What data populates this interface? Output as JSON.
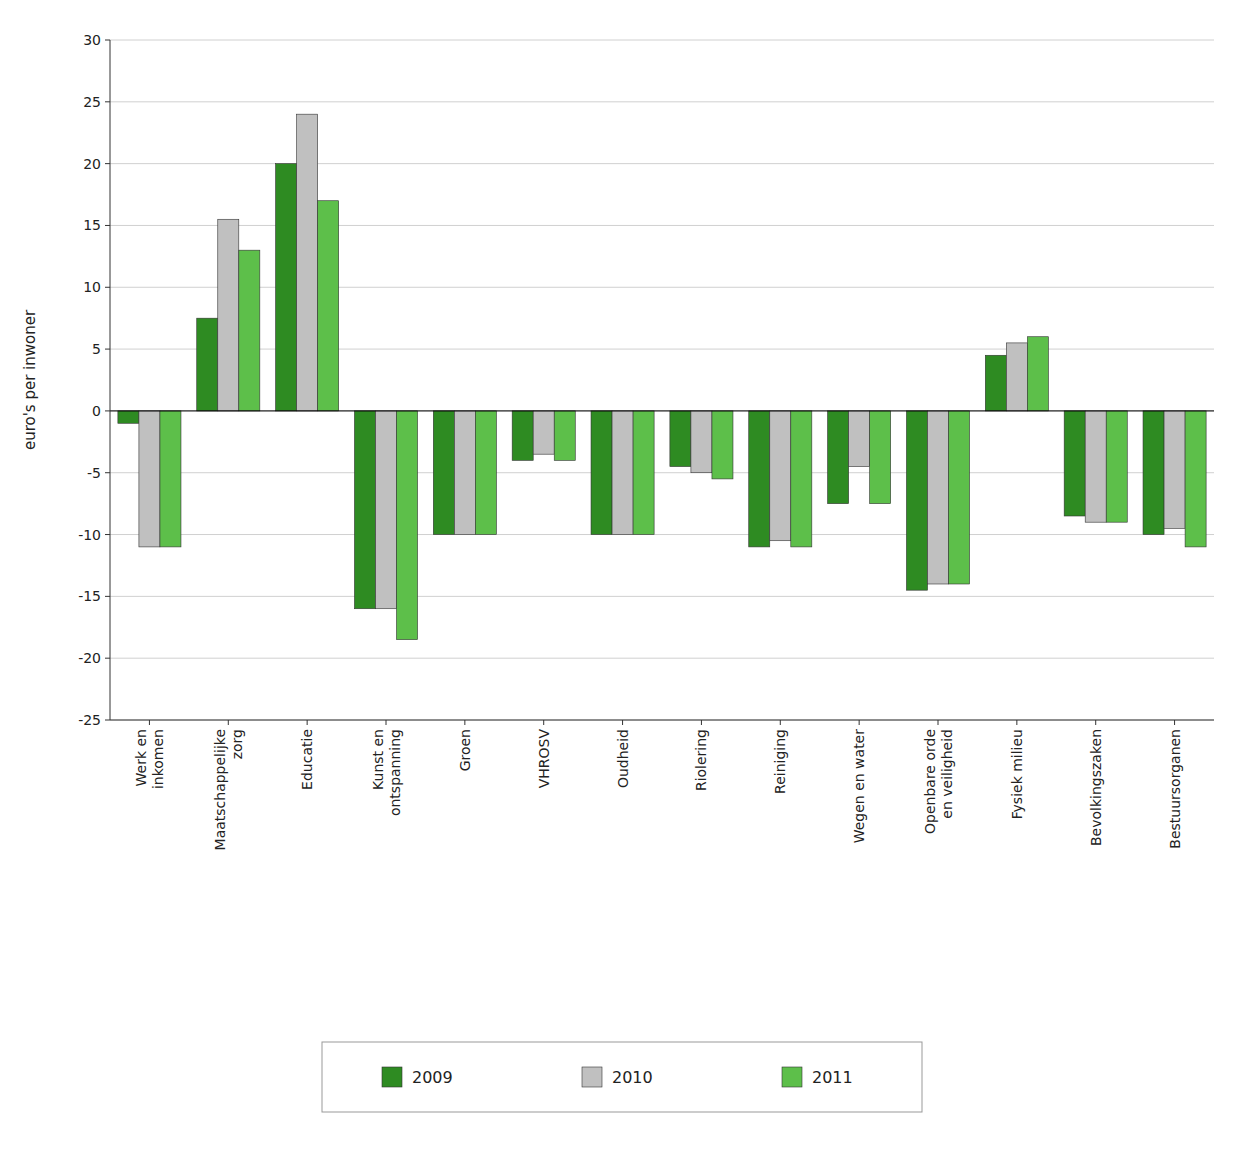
{
  "chart_data": {
    "type": "bar",
    "categories": [
      "Werk en\ninkomen",
      "Maatschappelijke\nzorg",
      "Educatie",
      "Kunst en\nontspanning",
      "Groen",
      "VHROSV",
      "Oudheid",
      "Riolering",
      "Reiniging",
      "Wegen en water",
      "Openbare orde\nen veiligheid",
      "Fysiek milieu",
      "Bevolkingszaken",
      "Bestuursorganen"
    ],
    "series": [
      {
        "name": "2009",
        "color": "#2E8B22",
        "values": [
          -1.0,
          7.5,
          20.0,
          -16.0,
          -10.0,
          -4.0,
          -10.0,
          -4.5,
          -11.0,
          -7.5,
          -14.5,
          4.5,
          -8.5,
          -10.0
        ]
      },
      {
        "name": "2010",
        "color": "#C0C0C0",
        "values": [
          -11.0,
          15.5,
          24.0,
          -16.0,
          -10.0,
          -3.5,
          -10.0,
          -5.0,
          -10.5,
          -4.5,
          -14.0,
          5.5,
          -9.0,
          -9.5
        ]
      },
      {
        "name": "2011",
        "color": "#5DBF4A",
        "values": [
          -11.0,
          13.0,
          17.0,
          -18.5,
          -10.0,
          -4.0,
          -10.0,
          -5.5,
          -11.0,
          -7.5,
          -14.0,
          6.0,
          -9.0,
          -11.0
        ]
      }
    ],
    "ylabel": "euro's per inwoner",
    "ylim": [
      -25,
      30
    ],
    "yticks": [
      -25,
      -20,
      -15,
      -10,
      -5,
      0,
      5,
      10,
      15,
      20,
      25,
      30
    ],
    "grid": true,
    "legend": "bottom"
  }
}
